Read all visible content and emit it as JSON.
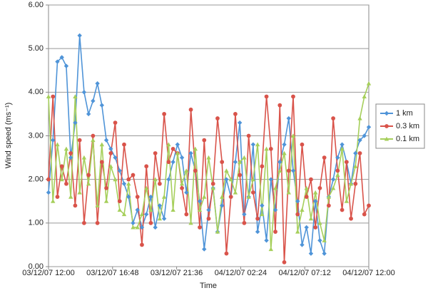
{
  "chart_data": {
    "type": "line",
    "x_label": "Time",
    "y_label": "Wind speed (ms⁻¹)",
    "x": [
      "03/12/07 12:00",
      "03/12/07 12:20",
      "03/12/07 12:40",
      "03/12/07 13:00",
      "03/12/07 13:20",
      "03/12/07 13:40",
      "03/12/07 14:00",
      "03/12/07 14:20",
      "03/12/07 14:40",
      "03/12/07 15:00",
      "03/12/07 15:20",
      "03/12/07 15:40",
      "03/12/07 16:00",
      "03/12/07 16:20",
      "03/12/07 16:40",
      "03/12/07 17:00",
      "03/12/07 17:20",
      "03/12/07 17:40",
      "03/12/07 18:00",
      "03/12/07 18:20",
      "03/12/07 18:40",
      "03/12/07 19:00",
      "03/12/07 19:20",
      "03/12/07 19:40",
      "03/12/07 20:00",
      "03/12/07 20:20",
      "03/12/07 20:40",
      "03/12/07 21:00",
      "03/12/07 21:20",
      "03/12/07 21:40",
      "03/12/07 22:00",
      "03/12/07 22:20",
      "03/12/07 22:40",
      "03/12/07 23:00",
      "03/12/07 23:20",
      "03/12/07 23:40",
      "04/12/07 00:00",
      "04/12/07 00:20",
      "04/12/07 00:40",
      "04/12/07 01:00",
      "04/12/07 01:20",
      "04/12/07 01:40",
      "04/12/07 02:00",
      "04/12/07 02:20",
      "04/12/07 02:40",
      "04/12/07 03:00",
      "04/12/07 03:20",
      "04/12/07 03:40",
      "04/12/07 04:00",
      "04/12/07 04:20",
      "04/12/07 04:40",
      "04/12/07 05:00",
      "04/12/07 05:20",
      "04/12/07 05:40",
      "04/12/07 06:00",
      "04/12/07 06:20",
      "04/12/07 06:40",
      "04/12/07 07:00",
      "04/12/07 07:20",
      "04/12/07 07:40",
      "04/12/07 08:00",
      "04/12/07 08:20",
      "04/12/07 08:40",
      "04/12/07 09:00",
      "04/12/07 09:20",
      "04/12/07 09:40",
      "04/12/07 10:00",
      "04/12/07 10:20",
      "04/12/07 10:40",
      "04/12/07 11:00",
      "04/12/07 11:20",
      "04/12/07 11:40",
      "04/12/07 12:00"
    ],
    "xlim": [
      "03/12/07 12:00",
      "04/12/07 12:00"
    ],
    "xticks": [
      "03/12/07 12:00",
      "03/12/07 16:48",
      "03/12/07 21:36",
      "04/12/07 02:24",
      "04/12/07 07:12",
      "04/12/07 12:00"
    ],
    "ylim": [
      0,
      6
    ],
    "yticks": [
      {
        "value": 0,
        "label": "0.00"
      },
      {
        "value": 1,
        "label": "1.00"
      },
      {
        "value": 2,
        "label": "2.00"
      },
      {
        "value": 3,
        "label": "3.00"
      },
      {
        "value": 4,
        "label": "4.00"
      },
      {
        "value": 5,
        "label": "5.00"
      },
      {
        "value": 6,
        "label": "6.00"
      }
    ],
    "grid": true,
    "legend": "right",
    "series": [
      {
        "name": "1 km",
        "color": "#4f94d8",
        "marker": "diamond",
        "values": [
          1.7,
          2.9,
          4.7,
          4.8,
          4.6,
          2.5,
          3.3,
          5.3,
          4.0,
          3.5,
          3.8,
          4.2,
          3.7,
          2.9,
          2.7,
          2.5,
          2.2,
          1.9,
          1.6,
          1.0,
          1.3,
          0.9,
          1.2,
          1.6,
          0.9,
          1.4,
          1.1,
          2.0,
          2.4,
          2.8,
          2.5,
          1.7,
          2.6,
          2.2,
          1.5,
          0.4,
          1.3,
          1.8,
          0.8,
          1.4,
          2.0,
          1.6,
          2.4,
          3.3,
          1.2,
          1.6,
          2.8,
          0.8,
          1.4,
          0.6,
          2.0,
          1.3,
          2.4,
          2.8,
          3.4,
          2.2,
          1.5,
          0.5,
          0.9,
          0.3,
          1.5,
          0.6,
          0.3,
          1.6,
          2.0,
          2.5,
          2.8,
          2.4,
          1.9,
          2.6,
          2.9,
          3.0,
          3.2
        ]
      },
      {
        "name": "0.3 km",
        "color": "#d9534a",
        "marker": "circle",
        "values": [
          2.0,
          3.9,
          1.6,
          2.3,
          1.9,
          2.6,
          1.4,
          2.9,
          1.0,
          2.1,
          3.0,
          1.0,
          2.4,
          1.8,
          2.6,
          3.3,
          1.5,
          2.8,
          2.0,
          2.1,
          1.6,
          0.5,
          2.3,
          1.0,
          2.6,
          1.9,
          3.5,
          2.4,
          2.7,
          2.6,
          1.8,
          1.2,
          3.6,
          2.2,
          0.9,
          2.9,
          1.1,
          1.9,
          3.4,
          2.4,
          0.3,
          1.6,
          3.5,
          2.1,
          1.0,
          3.0,
          1.7,
          1.1,
          2.3,
          3.9,
          2.7,
          0.8,
          3.7,
          0.1,
          2.2,
          3.9,
          1.2,
          2.8,
          1.6,
          2.0,
          0.9,
          1.8,
          2.5,
          1.4,
          3.4,
          2.2,
          1.3,
          2.4,
          1.1,
          1.9,
          2.6,
          1.2,
          1.4
        ]
      },
      {
        "name": "0.1 km",
        "color": "#a6cf5b",
        "marker": "triangle",
        "values": [
          3.9,
          1.5,
          2.8,
          2.0,
          2.7,
          1.6,
          3.9,
          1.7,
          2.5,
          1.9,
          2.9,
          1.4,
          2.8,
          1.5,
          2.3,
          2.0,
          1.3,
          1.2,
          1.9,
          0.9,
          0.9,
          1.2,
          1.8,
          1.3,
          2.0,
          1.1,
          1.6,
          2.8,
          1.3,
          2.6,
          1.9,
          2.2,
          1.0,
          2.7,
          1.3,
          1.6,
          2.5,
          1.8,
          0.8,
          1.6,
          2.2,
          2.0,
          1.7,
          2.4,
          2.5,
          1.6,
          2.0,
          2.8,
          1.2,
          2.7,
          0.4,
          1.8,
          2.2,
          2.6,
          1.7,
          3.0,
          0.8,
          1.3,
          1.8,
          1.1,
          1.7,
          1.0,
          0.6,
          1.6,
          1.8,
          2.1,
          2.7,
          1.5,
          1.9,
          2.3,
          3.4,
          3.9,
          4.2
        ]
      }
    ]
  }
}
